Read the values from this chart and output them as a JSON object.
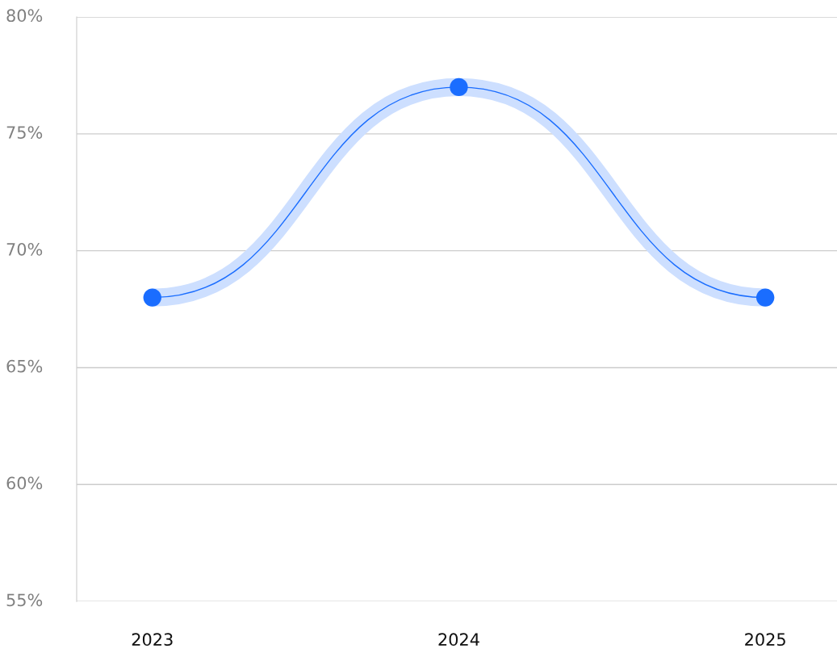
{
  "chart_data": {
    "type": "line",
    "categories": [
      "2023",
      "2024",
      "2025"
    ],
    "series": [
      {
        "color": "#1a6dff",
        "values": [
          68,
          77,
          68
        ]
      }
    ],
    "ylim": [
      55,
      80
    ],
    "yticks": [
      {
        "value": 55,
        "label": "55%"
      },
      {
        "value": 60,
        "label": "60%"
      },
      {
        "value": 65,
        "label": "65%"
      },
      {
        "value": 70,
        "label": "70%"
      },
      {
        "value": 75,
        "label": "75%"
      },
      {
        "value": 80,
        "label": "80%"
      }
    ],
    "grid": "y",
    "marker": "circle",
    "line_style": "solid"
  }
}
